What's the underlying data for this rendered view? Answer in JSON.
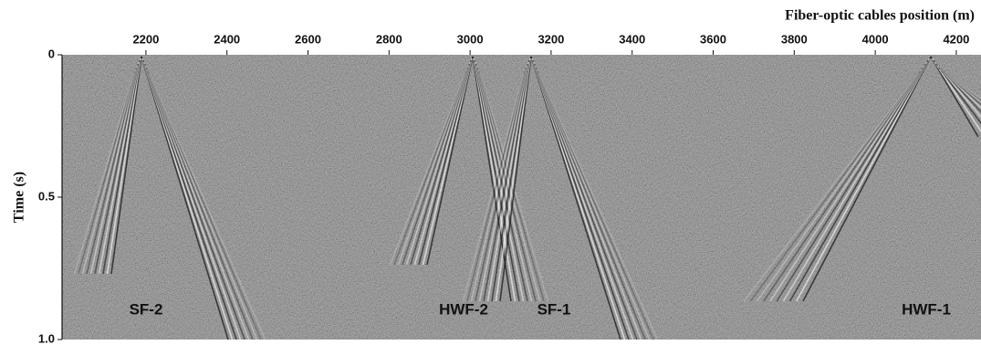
{
  "chart_data": {
    "type": "image",
    "x_label": "Fiber-optic cables position (m)",
    "y_label": "Time (s)",
    "xlim": [
      1993,
      4261
    ],
    "xticks": [
      2200,
      2400,
      2600,
      2800,
      3000,
      3200,
      3400,
      3600,
      3800,
      4000,
      4200
    ],
    "ylim": [
      0,
      1
    ],
    "yticks": [
      0,
      0.5,
      {
        "value": 1,
        "label": "1.0"
      }
    ],
    "annotations": [
      "SF-2",
      "HWF-2",
      "SF-1",
      "HWF-1"
    ]
  }
}
